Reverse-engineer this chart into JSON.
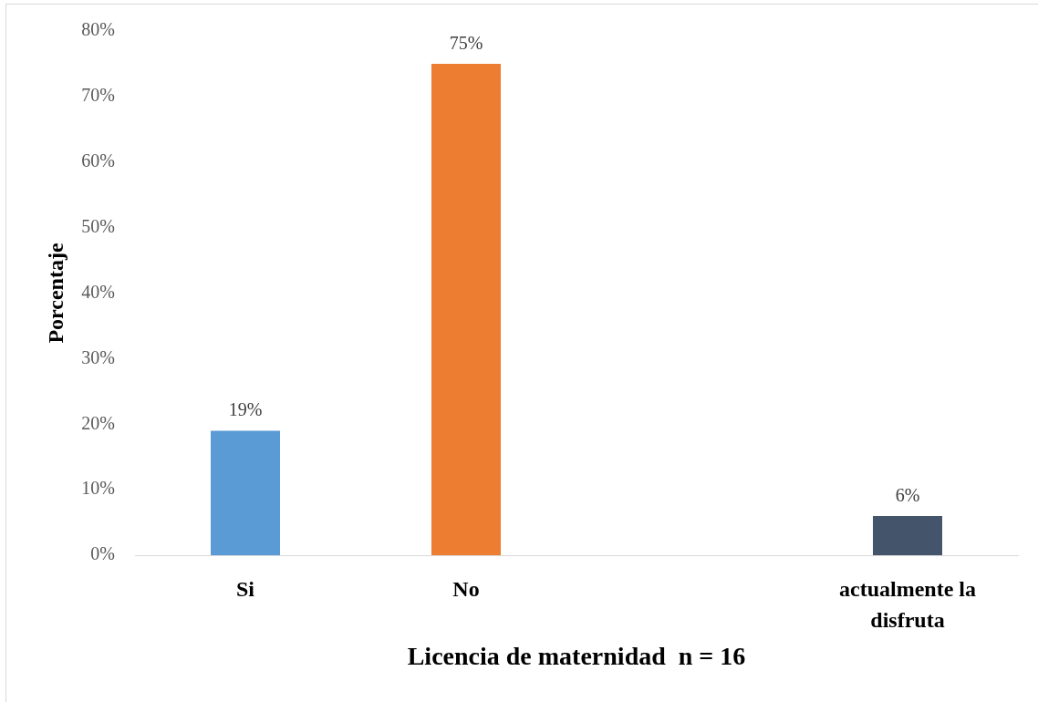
{
  "chart_data": {
    "type": "bar",
    "xlabel": "Licencia de maternidad  n = 16",
    "ylabel": "Porcentaje",
    "categories": [
      "Si",
      "No",
      null,
      "actualmente la disfruta"
    ],
    "values": [
      19,
      75,
      null,
      6
    ],
    "colors": [
      "#5b9bd5",
      "#ed7d31",
      null,
      "#44546a"
    ],
    "value_labels": [
      "19%",
      "75%",
      null,
      "6%"
    ],
    "ylim": [
      0,
      80
    ],
    "yticks": [
      {
        "value": 0,
        "label": "0%"
      },
      {
        "value": 10,
        "label": "10%"
      },
      {
        "value": 20,
        "label": "20%"
      },
      {
        "value": 30,
        "label": "30%"
      },
      {
        "value": 40,
        "label": "40%"
      },
      {
        "value": 50,
        "label": "50%"
      },
      {
        "value": 60,
        "label": "60%"
      },
      {
        "value": 70,
        "label": "70%"
      },
      {
        "value": 80,
        "label": "80%"
      }
    ],
    "grid": false,
    "legend": false
  }
}
